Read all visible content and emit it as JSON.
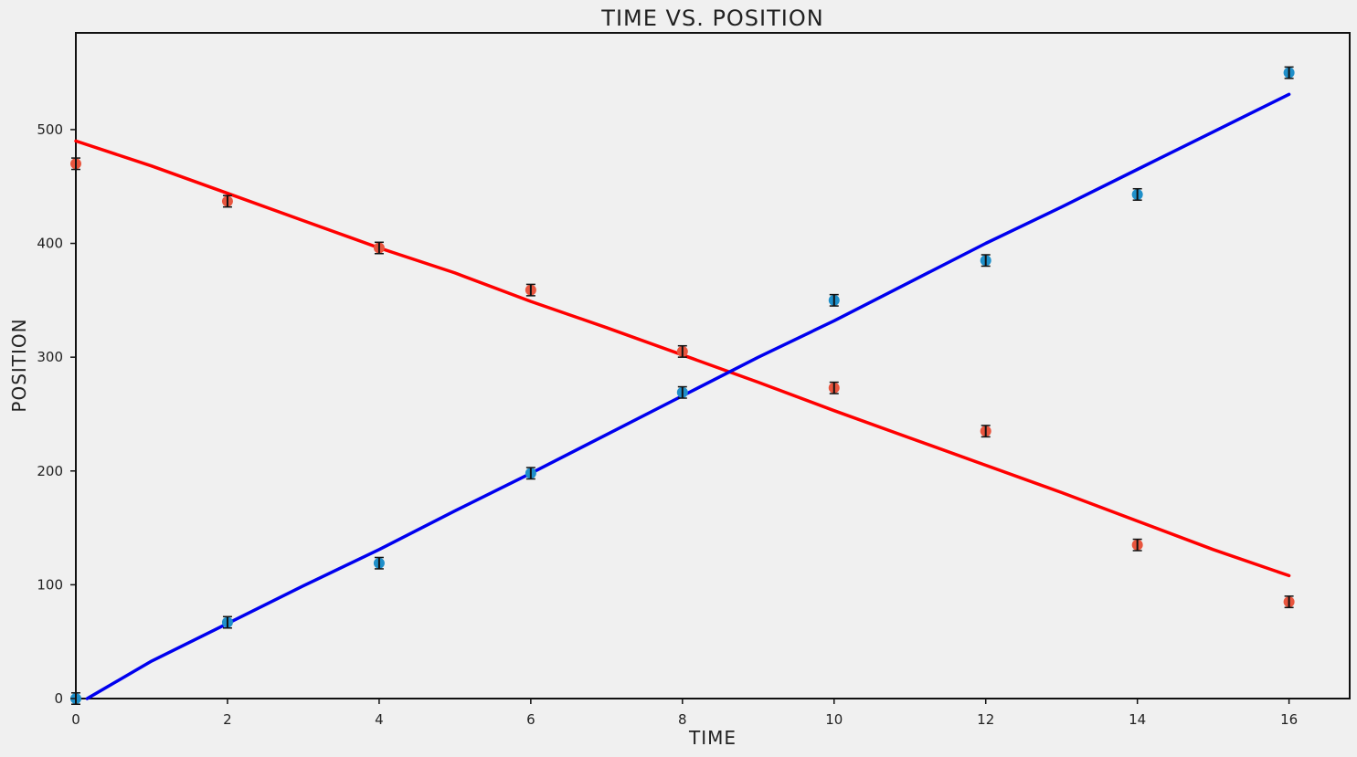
{
  "chart_data": {
    "type": "scatter",
    "title": "TIME VS. POSITION",
    "xlabel": "TIME",
    "ylabel": "POSITION",
    "xlim": [
      0,
      16.8
    ],
    "ylim": [
      0,
      585
    ],
    "xticks": [
      0,
      2,
      4,
      6,
      8,
      10,
      12,
      14,
      16
    ],
    "yticks": [
      0,
      100,
      200,
      300,
      400,
      500
    ],
    "grid": false,
    "series": [
      {
        "kind": "points",
        "color": "#e8553e",
        "errorbar": 5,
        "x": [
          0,
          2,
          4,
          6,
          8,
          10,
          12,
          14,
          16
        ],
        "y": [
          470,
          437,
          396,
          359,
          305,
          273,
          235,
          135,
          85
        ]
      },
      {
        "kind": "points",
        "color": "#1f8fc9",
        "errorbar": 5,
        "x": [
          0,
          2,
          4,
          6,
          8,
          10,
          12,
          14,
          16
        ],
        "y": [
          0,
          67,
          119,
          198,
          269,
          350,
          385,
          443,
          550
        ]
      },
      {
        "kind": "line",
        "color": "#ff0000",
        "x": [
          0,
          1,
          2,
          3,
          4,
          5,
          6,
          7,
          8,
          9,
          10,
          11,
          12,
          13,
          14,
          15,
          16
        ],
        "y": [
          490,
          468,
          444,
          420,
          396,
          374,
          349,
          326,
          302,
          278,
          253,
          229,
          205,
          181,
          156,
          131,
          108
        ]
      },
      {
        "kind": "line",
        "color": "#0000ee",
        "x": [
          0.15,
          1,
          2,
          3,
          4,
          5,
          6,
          7,
          8,
          9,
          10,
          11,
          12,
          13,
          14,
          15,
          16
        ],
        "y": [
          0,
          33,
          66,
          99,
          131,
          165,
          198,
          232,
          266,
          300,
          332,
          366,
          400,
          432,
          465,
          498,
          531
        ]
      }
    ]
  }
}
